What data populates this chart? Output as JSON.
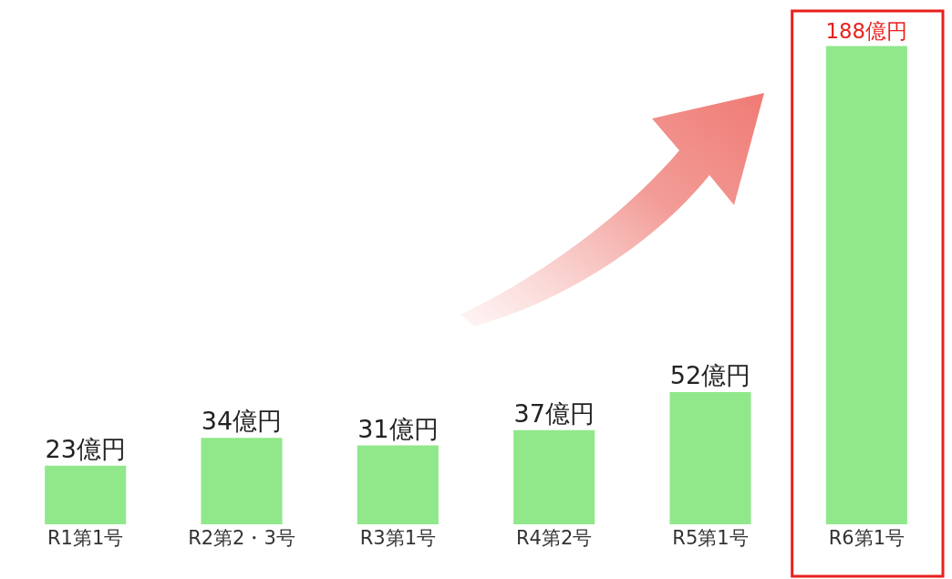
{
  "chart_data": {
    "type": "bar",
    "categories": [
      "R1第1号",
      "R2第2・3号",
      "R3第1号",
      "R4第2号",
      "R5第1号",
      "R6第1号"
    ],
    "values": [
      23,
      34,
      31,
      37,
      52,
      188
    ],
    "value_labels": [
      "23億円",
      "34億円",
      "31億円",
      "37億円",
      "52億円",
      "188億円"
    ],
    "color": "#90e88a",
    "grid": false
  }
}
